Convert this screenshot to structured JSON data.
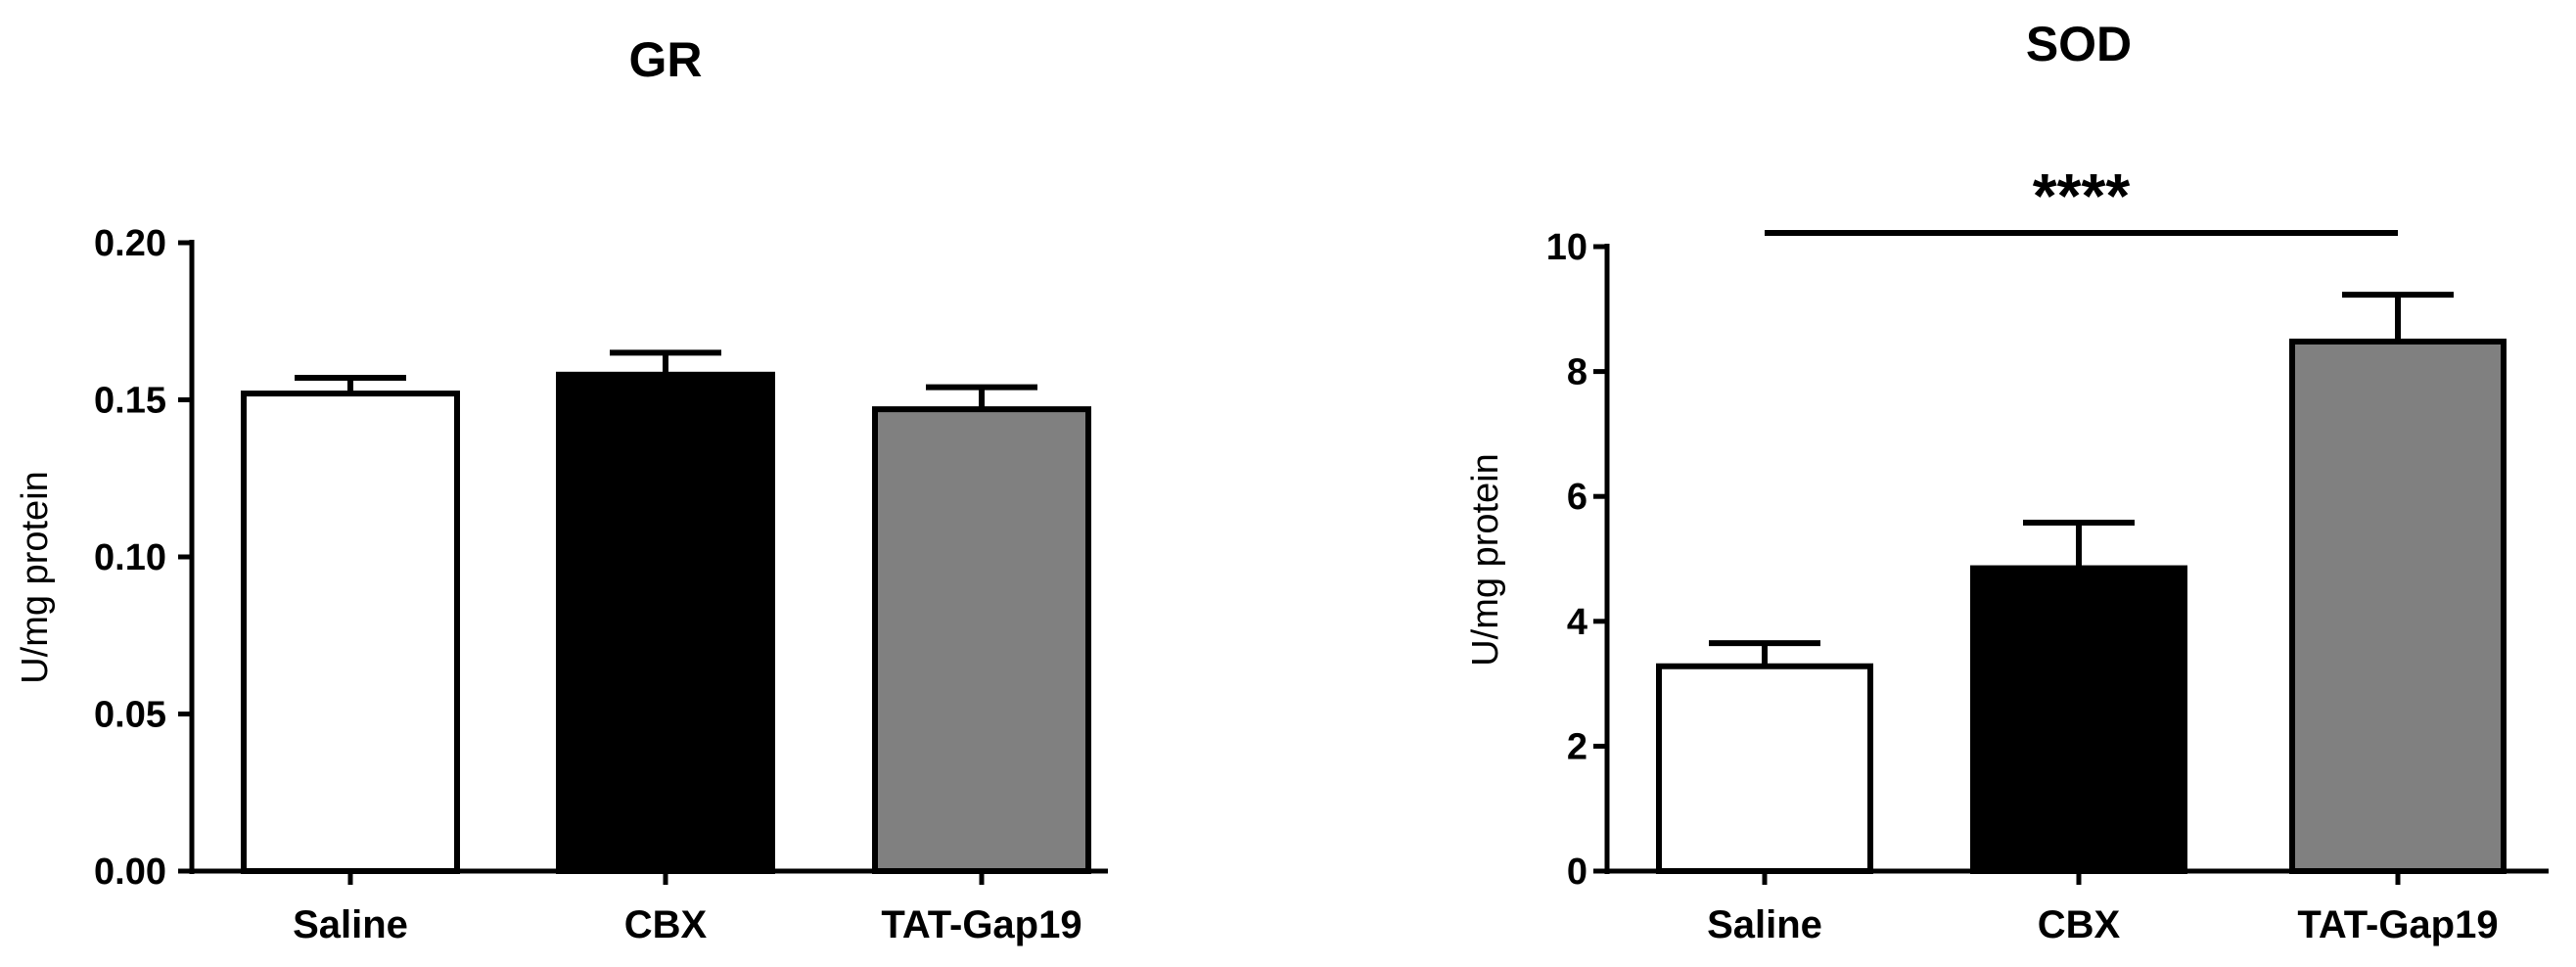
{
  "chart_data": [
    {
      "type": "bar",
      "title": "GR",
      "ylabel": "U/mg protein",
      "xlabel": "",
      "ylim": [
        0,
        0.2
      ],
      "yticks": [
        "0.00",
        "0.05",
        "0.10",
        "0.15",
        "0.20"
      ],
      "yticks_values": [
        0,
        0.05,
        0.1,
        0.15,
        0.2
      ],
      "categories": [
        "Saline",
        "CBX",
        "TAT-Gap19"
      ],
      "values": [
        0.152,
        0.158,
        0.147
      ],
      "errors": [
        0.005,
        0.007,
        0.007
      ],
      "bar_colors": [
        "#ffffff",
        "#000000",
        "#808080"
      ],
      "significance": null,
      "grid": false
    },
    {
      "type": "bar",
      "title": "SOD",
      "ylabel": "U/mg protein",
      "xlabel": "",
      "ylim": [
        0,
        10
      ],
      "yticks": [
        "0",
        "2",
        "4",
        "6",
        "8",
        "10"
      ],
      "yticks_values": [
        0,
        2,
        4,
        6,
        8,
        10
      ],
      "categories": [
        "Saline",
        "CBX",
        "TAT-Gap19"
      ],
      "values": [
        3.28,
        4.85,
        8.48
      ],
      "errors": [
        0.37,
        0.73,
        0.75
      ],
      "bar_colors": [
        "#ffffff",
        "#000000",
        "#808080"
      ],
      "significance": {
        "label": "****",
        "from": "Saline",
        "to": "TAT-Gap19"
      },
      "grid": false
    }
  ]
}
